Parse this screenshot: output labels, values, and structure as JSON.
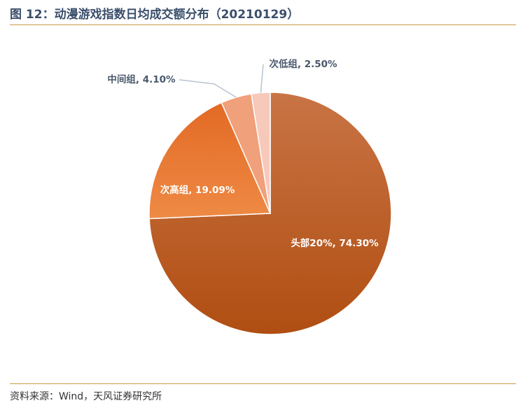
{
  "header": {
    "title": "图 12：动漫游戏指数日均成交额分布（20210129）"
  },
  "footer": {
    "source": "资料来源：Wind，天风证券研究所"
  },
  "chart_data": {
    "type": "pie",
    "title": "图 12：动漫游戏指数日均成交额分布（20210129）",
    "start": "12 o'clock, clockwise",
    "slices": [
      {
        "name": "头部20%",
        "value": 74.3,
        "label": "头部20%, 74.30%",
        "color": "#c0581c"
      },
      {
        "name": "次高组",
        "value": 19.09,
        "label": "次高组, 19.09%",
        "color": "#e8752c"
      },
      {
        "name": "中间组",
        "value": 4.1,
        "label": "中间组, 4.10%",
        "color": "#f0a07a"
      },
      {
        "name": "次低组",
        "value": 2.5,
        "label": "次低组, 2.50%",
        "color": "#f6c9bb"
      }
    ]
  }
}
